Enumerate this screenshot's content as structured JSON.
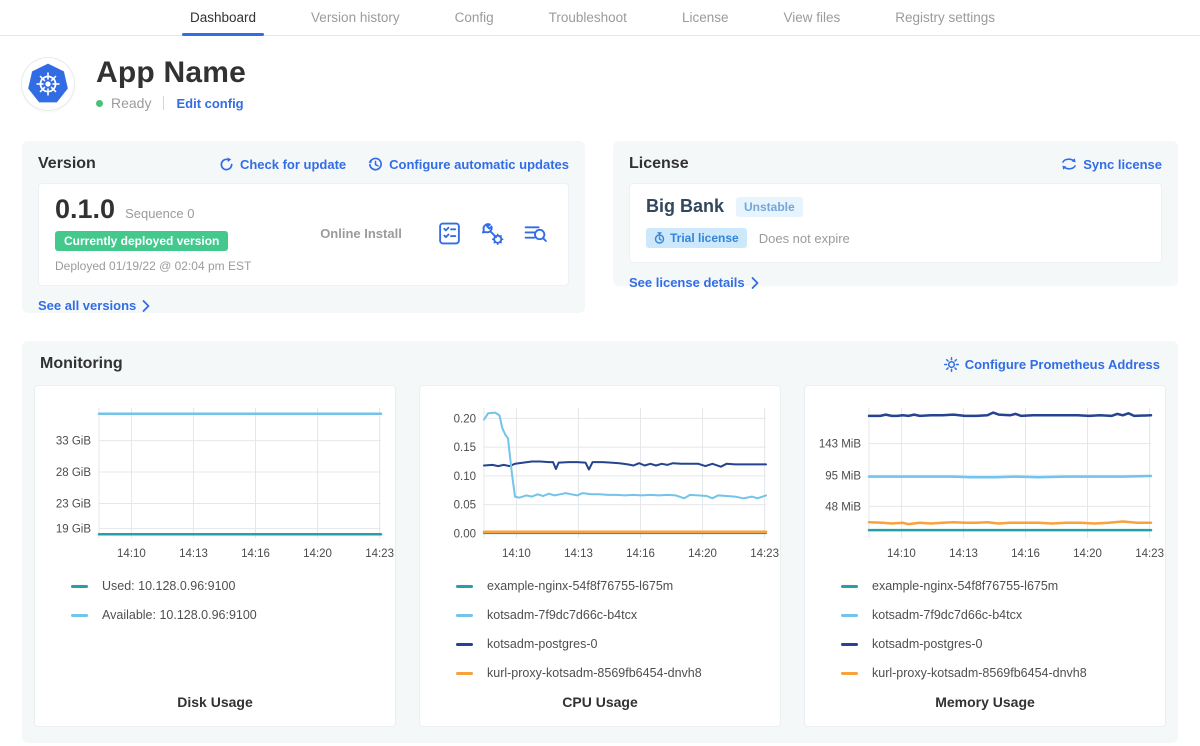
{
  "nav": {
    "tabs": [
      {
        "label": "Dashboard",
        "active": true
      },
      {
        "label": "Version history",
        "active": false
      },
      {
        "label": "Config",
        "active": false
      },
      {
        "label": "Troubleshoot",
        "active": false
      },
      {
        "label": "License",
        "active": false
      },
      {
        "label": "View files",
        "active": false
      },
      {
        "label": "Registry settings",
        "active": false
      }
    ]
  },
  "app_header": {
    "title": "App Name",
    "status": "Ready",
    "edit_config_label": "Edit config",
    "logo_icon": "kubernetes-wheel-icon"
  },
  "version_card": {
    "title": "Version",
    "check_update_label": "Check for update",
    "auto_updates_label": "Configure automatic updates",
    "version_number": "0.1.0",
    "sequence_label": "Sequence 0",
    "deployed_badge": "Currently deployed version",
    "install_type": "Online Install",
    "deployed_at": "Deployed 01/19/22 @ 02:04 pm EST",
    "see_all_label": "See all versions",
    "action_icons": [
      "preflight-checks-icon",
      "config-wrench-icon",
      "deploy-logs-icon"
    ]
  },
  "license_card": {
    "title": "License",
    "sync_label": "Sync license",
    "customer_name": "Big Bank",
    "channel_badge": "Unstable",
    "trial_badge": "Trial license",
    "expiry_text": "Does not expire",
    "details_label": "See license details"
  },
  "monitoring": {
    "title": "Monitoring",
    "configure_label": "Configure Prometheus Address",
    "colors": {
      "teal": "#25a0a8",
      "light_blue": "#73c3ea",
      "navy": "#25438f",
      "orange": "#f7a23c"
    },
    "charts": [
      {
        "type": "line",
        "title": "Disk Usage",
        "ylim": [
          17.5,
          38.2
        ],
        "yticks": [
          {
            "label": "33 GiB",
            "value": 33
          },
          {
            "label": "28 GiB",
            "value": 28
          },
          {
            "label": "23 GiB",
            "value": 23
          },
          {
            "label": "19 GiB",
            "value": 19
          }
        ],
        "xticks": [
          {
            "label": "14:10",
            "t": 0.115
          },
          {
            "label": "14:13",
            "t": 0.335
          },
          {
            "label": "14:16",
            "t": 0.555
          },
          {
            "label": "14:20",
            "t": 0.775
          },
          {
            "label": "14:23",
            "t": 0.995
          }
        ],
        "series": [
          {
            "label": "Used: 10.128.0.96:9100",
            "color": "#25a0a8",
            "width": 2.5,
            "points": [
              [
                0,
                18.1
              ],
              [
                1,
                18.1
              ]
            ]
          },
          {
            "label": "Available: 10.128.0.96:9100",
            "color": "#73c3ea",
            "width": 2.5,
            "points": [
              [
                0,
                37.3
              ],
              [
                1,
                37.3
              ]
            ]
          }
        ]
      },
      {
        "type": "line",
        "title": "CPU Usage",
        "ylim": [
          -0.008,
          0.218
        ],
        "yticks": [
          {
            "label": "0.20",
            "value": 0.2
          },
          {
            "label": "0.15",
            "value": 0.15
          },
          {
            "label": "0.10",
            "value": 0.1
          },
          {
            "label": "0.05",
            "value": 0.05
          },
          {
            "label": "0.00",
            "value": 0.0
          }
        ],
        "xticks": [
          {
            "label": "14:10",
            "t": 0.115
          },
          {
            "label": "14:13",
            "t": 0.335
          },
          {
            "label": "14:16",
            "t": 0.555
          },
          {
            "label": "14:20",
            "t": 0.775
          },
          {
            "label": "14:23",
            "t": 0.995
          }
        ],
        "series": [
          {
            "label": "example-nginx-54f8f76755-l675m",
            "color": "#25a0a8",
            "width": 2,
            "points": [
              [
                0,
                0.0005
              ],
              [
                1,
                0.0005
              ]
            ]
          },
          {
            "label": "kurl-proxy-kotsadm-8569fb6454-dnvh8",
            "color": "#f7a23c",
            "width": 2.5,
            "points": [
              [
                0,
                0.003
              ],
              [
                1,
                0.003
              ]
            ]
          },
          {
            "label": "kotsadm-postgres-0",
            "color": "#25438f",
            "width": 2,
            "points": [
              [
                0,
                0.118
              ],
              [
                0.03,
                0.119
              ],
              [
                0.05,
                0.117
              ],
              [
                0.07,
                0.119
              ],
              [
                0.09,
                0.117
              ],
              [
                0.11,
                0.121
              ],
              [
                0.14,
                0.123
              ],
              [
                0.17,
                0.125
              ],
              [
                0.2,
                0.125
              ],
              [
                0.23,
                0.124
              ],
              [
                0.245,
                0.124
              ],
              [
                0.255,
                0.112
              ],
              [
                0.265,
                0.123
              ],
              [
                0.3,
                0.124
              ],
              [
                0.33,
                0.124
              ],
              [
                0.36,
                0.123
              ],
              [
                0.372,
                0.111
              ],
              [
                0.385,
                0.124
              ],
              [
                0.42,
                0.124
              ],
              [
                0.45,
                0.123
              ],
              [
                0.48,
                0.122
              ],
              [
                0.51,
                0.12
              ],
              [
                0.53,
                0.118
              ],
              [
                0.55,
                0.122
              ],
              [
                0.57,
                0.118
              ],
              [
                0.59,
                0.121
              ],
              [
                0.61,
                0.118
              ],
              [
                0.63,
                0.121
              ],
              [
                0.65,
                0.119
              ],
              [
                0.67,
                0.122
              ],
              [
                0.7,
                0.121
              ],
              [
                0.73,
                0.121
              ],
              [
                0.76,
                0.121
              ],
              [
                0.785,
                0.117
              ],
              [
                0.81,
                0.121
              ],
              [
                0.84,
                0.116
              ],
              [
                0.86,
                0.121
              ],
              [
                0.89,
                0.12
              ],
              [
                0.92,
                0.12
              ],
              [
                0.95,
                0.12
              ],
              [
                1,
                0.12
              ]
            ]
          },
          {
            "label": "kotsadm-7f9dc7d66c-b4tcx",
            "color": "#73c3ea",
            "width": 2,
            "points": [
              [
                0,
                0.198
              ],
              [
                0.015,
                0.209
              ],
              [
                0.04,
                0.21
              ],
              [
                0.055,
                0.205
              ],
              [
                0.065,
                0.183
              ],
              [
                0.075,
                0.172
              ],
              [
                0.085,
                0.165
              ],
              [
                0.1,
                0.1
              ],
              [
                0.11,
                0.064
              ],
              [
                0.125,
                0.062
              ],
              [
                0.15,
                0.066
              ],
              [
                0.17,
                0.064
              ],
              [
                0.19,
                0.068
              ],
              [
                0.21,
                0.065
              ],
              [
                0.23,
                0.069
              ],
              [
                0.25,
                0.066
              ],
              [
                0.27,
                0.068
              ],
              [
                0.29,
                0.07
              ],
              [
                0.31,
                0.068
              ],
              [
                0.33,
                0.066
              ],
              [
                0.35,
                0.07
              ],
              [
                0.38,
                0.068
              ],
              [
                0.41,
                0.068
              ],
              [
                0.44,
                0.067
              ],
              [
                0.47,
                0.067
              ],
              [
                0.5,
                0.066
              ],
              [
                0.53,
                0.067
              ],
              [
                0.56,
                0.066
              ],
              [
                0.59,
                0.067
              ],
              [
                0.62,
                0.066
              ],
              [
                0.65,
                0.067
              ],
              [
                0.68,
                0.066
              ],
              [
                0.71,
                0.061
              ],
              [
                0.73,
                0.067
              ],
              [
                0.76,
                0.066
              ],
              [
                0.79,
                0.065
              ],
              [
                0.81,
                0.061
              ],
              [
                0.83,
                0.066
              ],
              [
                0.86,
                0.065
              ],
              [
                0.89,
                0.064
              ],
              [
                0.92,
                0.061
              ],
              [
                0.95,
                0.064
              ],
              [
                0.97,
                0.061
              ],
              [
                1,
                0.066
              ]
            ]
          }
        ]
      },
      {
        "type": "line",
        "title": "Memory Usage",
        "ylim": [
          0,
          197
        ],
        "yticks": [
          {
            "label": "143 MiB",
            "value": 143
          },
          {
            "label": "95 MiB",
            "value": 95
          },
          {
            "label": "48 MiB",
            "value": 48
          }
        ],
        "xticks": [
          {
            "label": "14:10",
            "t": 0.115
          },
          {
            "label": "14:13",
            "t": 0.335
          },
          {
            "label": "14:16",
            "t": 0.555
          },
          {
            "label": "14:20",
            "t": 0.775
          },
          {
            "label": "14:23",
            "t": 0.995
          }
        ],
        "series": [
          {
            "label": "example-nginx-54f8f76755-l675m",
            "color": "#25a0a8",
            "width": 2.5,
            "points": [
              [
                0,
                12
              ],
              [
                1,
                12
              ]
            ]
          },
          {
            "label": "kurl-proxy-kotsadm-8569fb6454-dnvh8",
            "color": "#f7a23c",
            "width": 2.5,
            "points": [
              [
                0,
                24
              ],
              [
                0.05,
                23
              ],
              [
                0.08,
                22
              ],
              [
                0.12,
                23
              ],
              [
                0.14,
                21
              ],
              [
                0.18,
                23
              ],
              [
                0.22,
                22
              ],
              [
                0.26,
                23
              ],
              [
                0.3,
                24
              ],
              [
                0.34,
                23
              ],
              [
                0.38,
                23
              ],
              [
                0.42,
                24
              ],
              [
                0.46,
                22
              ],
              [
                0.5,
                23
              ],
              [
                0.55,
                23
              ],
              [
                0.6,
                23
              ],
              [
                0.65,
                22
              ],
              [
                0.7,
                23
              ],
              [
                0.75,
                23
              ],
              [
                0.8,
                22
              ],
              [
                0.85,
                23
              ],
              [
                0.9,
                25
              ],
              [
                0.95,
                23
              ],
              [
                1,
                23
              ]
            ]
          },
          {
            "label": "kotsadm-7f9dc7d66c-b4tcx",
            "color": "#73c3ea",
            "width": 2.5,
            "points": [
              [
                0,
                93
              ],
              [
                0.1,
                93
              ],
              [
                0.2,
                93
              ],
              [
                0.3,
                93
              ],
              [
                0.36,
                92
              ],
              [
                0.45,
                92
              ],
              [
                0.52,
                93
              ],
              [
                0.6,
                92
              ],
              [
                0.7,
                93
              ],
              [
                0.8,
                93
              ],
              [
                0.9,
                93
              ],
              [
                1,
                94
              ]
            ]
          },
          {
            "label": "kotsadm-postgres-0",
            "color": "#25438f",
            "width": 2.5,
            "points": [
              [
                0,
                185
              ],
              [
                0.04,
                185
              ],
              [
                0.06,
                187
              ],
              [
                0.08,
                185
              ],
              [
                0.1,
                185
              ],
              [
                0.12,
                186
              ],
              [
                0.14,
                185
              ],
              [
                0.16,
                187
              ],
              [
                0.18,
                185
              ],
              [
                0.22,
                186
              ],
              [
                0.26,
                186
              ],
              [
                0.3,
                187
              ],
              [
                0.34,
                185
              ],
              [
                0.38,
                185
              ],
              [
                0.42,
                186
              ],
              [
                0.44,
                190
              ],
              [
                0.46,
                187
              ],
              [
                0.5,
                186
              ],
              [
                0.52,
                188
              ],
              [
                0.54,
                185
              ],
              [
                0.58,
                186
              ],
              [
                0.62,
                186
              ],
              [
                0.66,
                186
              ],
              [
                0.7,
                186
              ],
              [
                0.74,
                186
              ],
              [
                0.78,
                185
              ],
              [
                0.82,
                186
              ],
              [
                0.86,
                185
              ],
              [
                0.88,
                188
              ],
              [
                0.9,
                186
              ],
              [
                0.92,
                189
              ],
              [
                0.94,
                185
              ],
              [
                1,
                186
              ]
            ]
          }
        ]
      }
    ]
  }
}
